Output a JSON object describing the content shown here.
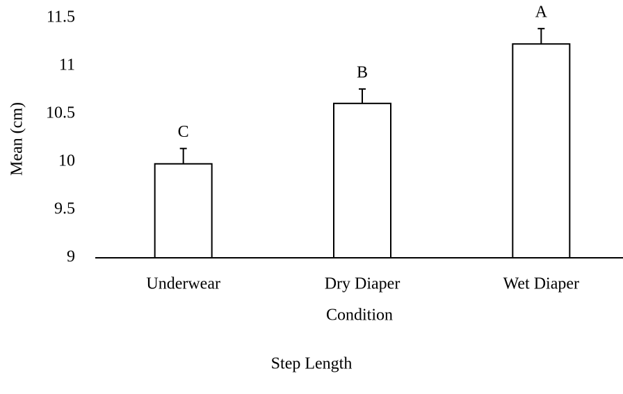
{
  "chart_data": {
    "type": "bar",
    "title": "Step Length",
    "x_label": "Condition",
    "y_label": "Mean (cm)",
    "categories": [
      "Underwear",
      "Dry Diaper",
      "Wet Diaper"
    ],
    "values": [
      9.98,
      10.61,
      11.23
    ],
    "errors": [
      0.16,
      0.15,
      0.16
    ],
    "annotations": [
      "C",
      "B",
      "A"
    ],
    "color": "#ffffff",
    "ylim": [
      9,
      11.5
    ],
    "yticks": [
      9,
      9.5,
      10,
      10.5,
      11,
      11.5
    ],
    "grid": false
  }
}
